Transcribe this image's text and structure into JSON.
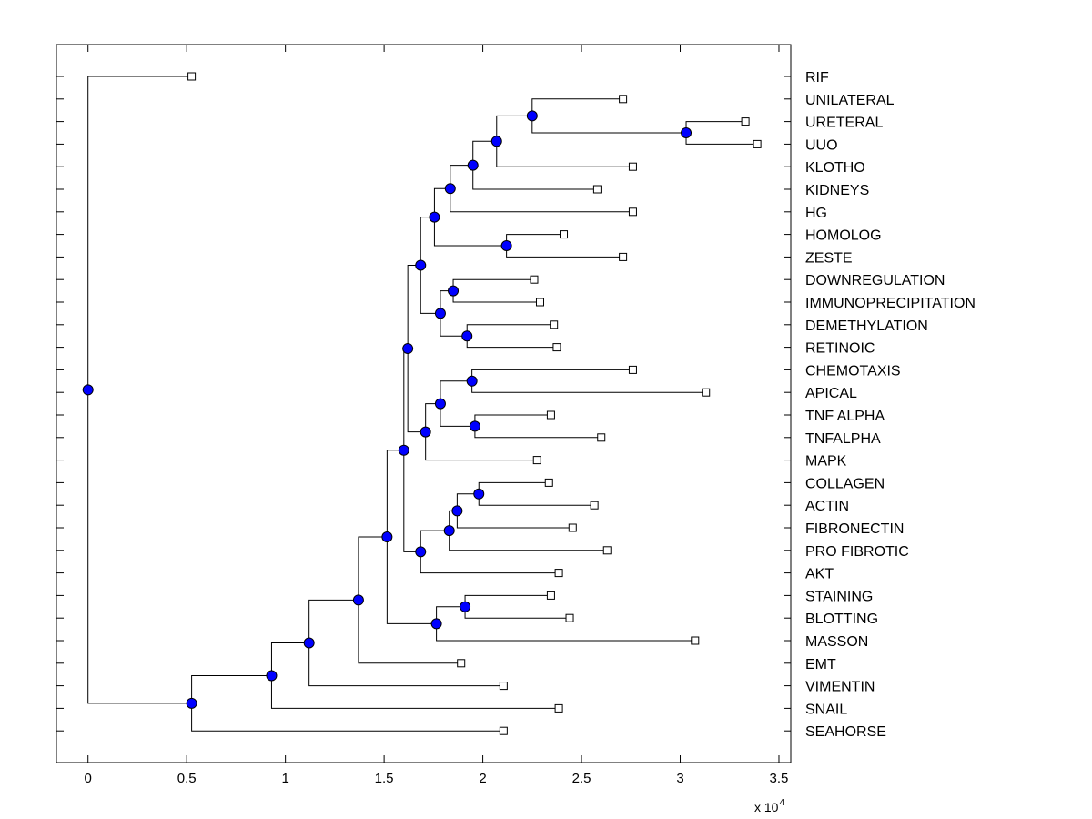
{
  "chart_data": {
    "type": "dendrogram",
    "title": "",
    "xlabel": "",
    "ylabel": "",
    "xlim": [
      -0.16,
      3.56
    ],
    "x_ticks": [
      0,
      0.5,
      1,
      1.5,
      2,
      2.5,
      3,
      3.5
    ],
    "x_tick_labels": [
      "0",
      "0.5",
      "1",
      "1.5",
      "2",
      "2.5",
      "3",
      "3.5"
    ],
    "x_multiplier": {
      "base": "x 10",
      "exponent": "4"
    },
    "leaves": [
      {
        "label": "RIF",
        "x": 0.525
      },
      {
        "label": "UNILATERAL",
        "x": 2.71
      },
      {
        "label": "URETERAL",
        "x": 3.33
      },
      {
        "label": "UUO",
        "x": 3.39
      },
      {
        "label": "KLOTHO",
        "x": 2.76
      },
      {
        "label": "KIDNEYS",
        "x": 2.58
      },
      {
        "label": "HG",
        "x": 2.76
      },
      {
        "label": "HOMOLOG",
        "x": 2.41
      },
      {
        "label": "ZESTE",
        "x": 2.71
      },
      {
        "label": "DOWNREGULATION",
        "x": 2.26
      },
      {
        "label": "IMMUNOPRECIPITATION",
        "x": 2.29
      },
      {
        "label": "DEMETHYLATION",
        "x": 2.36
      },
      {
        "label": "RETINOIC",
        "x": 2.375
      },
      {
        "label": "CHEMOTAXIS",
        "x": 2.76
      },
      {
        "label": "APICAL",
        "x": 3.13
      },
      {
        "label": "TNF ALPHA",
        "x": 2.345
      },
      {
        "label": "TNFALPHA",
        "x": 2.6
      },
      {
        "label": "MAPK",
        "x": 2.275
      },
      {
        "label": "COLLAGEN",
        "x": 2.335
      },
      {
        "label": "ACTIN",
        "x": 2.565
      },
      {
        "label": "FIBRONECTIN",
        "x": 2.455
      },
      {
        "label": "PRO FIBROTIC",
        "x": 2.63
      },
      {
        "label": "AKT",
        "x": 2.385
      },
      {
        "label": "STAINING",
        "x": 2.345
      },
      {
        "label": "BLOTTING",
        "x": 2.44
      },
      {
        "label": "MASSON",
        "x": 3.075
      },
      {
        "label": "EMT",
        "x": 1.89
      },
      {
        "label": "VIMENTIN",
        "x": 2.105
      },
      {
        "label": "SNAIL",
        "x": 2.385
      },
      {
        "label": "SEAHORSE",
        "x": 2.105
      }
    ],
    "nodes": [
      {
        "id": "n_uret_uuo",
        "x": 3.03,
        "children": [
          "L:URETERAL",
          "L:UUO"
        ]
      },
      {
        "id": "n_unil",
        "x": 2.25,
        "children": [
          "L:UNILATERAL",
          "N:n_uret_uuo"
        ]
      },
      {
        "id": "n_a",
        "x": 2.07,
        "children": [
          "N:n_unil",
          "L:KLOTHO"
        ]
      },
      {
        "id": "n_b",
        "x": 1.95,
        "children": [
          "N:n_a",
          "L:KIDNEYS"
        ]
      },
      {
        "id": "n_c",
        "x": 1.835,
        "children": [
          "N:n_b",
          "L:HG"
        ]
      },
      {
        "id": "n_hz",
        "x": 2.12,
        "children": [
          "L:HOMOLOG",
          "L:ZESTE"
        ]
      },
      {
        "id": "n_d",
        "x": 1.755,
        "children": [
          "N:n_c",
          "N:n_hz"
        ]
      },
      {
        "id": "n_di",
        "x": 1.85,
        "children": [
          "L:DOWNREGULATION",
          "L:IMMUNOPRECIPITATION"
        ]
      },
      {
        "id": "n_dr",
        "x": 1.92,
        "children": [
          "L:DEMETHYLATION",
          "L:RETINOIC"
        ]
      },
      {
        "id": "n_e",
        "x": 1.785,
        "children": [
          "N:n_di",
          "N:n_dr"
        ]
      },
      {
        "id": "n_f",
        "x": 1.685,
        "children": [
          "N:n_d",
          "N:n_e"
        ]
      },
      {
        "id": "n_ca",
        "x": 1.945,
        "children": [
          "L:CHEMOTAXIS",
          "L:APICAL"
        ]
      },
      {
        "id": "n_tnf",
        "x": 1.96,
        "children": [
          "L:TNF ALPHA",
          "L:TNFALPHA"
        ]
      },
      {
        "id": "n_g",
        "x": 1.785,
        "children": [
          "N:n_ca",
          "N:n_tnf"
        ]
      },
      {
        "id": "n_h",
        "x": 1.71,
        "children": [
          "N:n_g",
          "L:MAPK"
        ]
      },
      {
        "id": "n_i",
        "x": 1.62,
        "children": [
          "N:n_f",
          "N:n_h"
        ]
      },
      {
        "id": "n_colact",
        "x": 1.98,
        "children": [
          "L:COLLAGEN",
          "L:ACTIN"
        ]
      },
      {
        "id": "n_j",
        "x": 1.87,
        "children": [
          "N:n_colact",
          "L:FIBRONECTIN"
        ]
      },
      {
        "id": "n_k",
        "x": 1.83,
        "children": [
          "N:n_j",
          "L:PRO FIBROTIC"
        ]
      },
      {
        "id": "n_l",
        "x": 1.685,
        "children": [
          "N:n_k",
          "L:AKT"
        ]
      },
      {
        "id": "n_m",
        "x": 1.6,
        "children": [
          "N:n_i",
          "N:n_l"
        ]
      },
      {
        "id": "n_sb",
        "x": 1.91,
        "children": [
          "L:STAINING",
          "L:BLOTTING"
        ]
      },
      {
        "id": "n_n",
        "x": 1.765,
        "children": [
          "N:n_sb",
          "L:MASSON"
        ]
      },
      {
        "id": "n_o",
        "x": 1.515,
        "children": [
          "N:n_m",
          "N:n_n"
        ]
      },
      {
        "id": "n_p",
        "x": 1.37,
        "children": [
          "N:n_o",
          "L:EMT"
        ]
      },
      {
        "id": "n_q",
        "x": 1.12,
        "children": [
          "N:n_p",
          "L:VIMENTIN"
        ]
      },
      {
        "id": "n_r",
        "x": 0.93,
        "children": [
          "N:n_q",
          "L:SNAIL"
        ]
      },
      {
        "id": "n_s",
        "x": 0.525,
        "children": [
          "N:n_r",
          "L:SEAHORSE"
        ]
      },
      {
        "id": "n_root",
        "x": 0.0,
        "children": [
          "L:RIF",
          "N:n_s"
        ]
      }
    ],
    "node_color": "#0000ff",
    "leaf_marker_color": "#ffffff",
    "line_color": "#000000",
    "grid": false
  }
}
